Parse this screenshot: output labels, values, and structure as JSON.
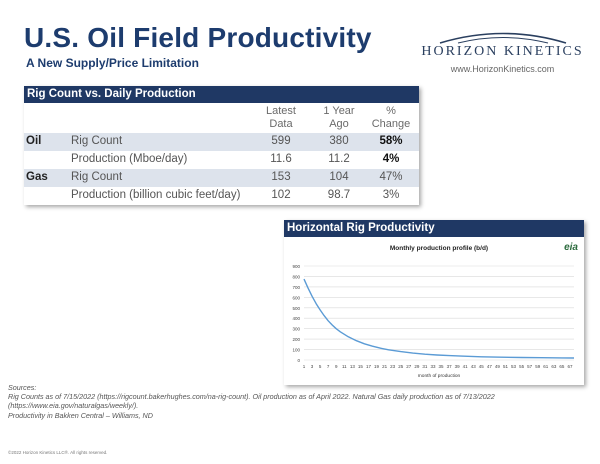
{
  "slide": {
    "title": "U.S. Oil Field Productivity",
    "subtitle": "A New Supply/Price Limitation"
  },
  "logo": {
    "name": "HORIZON KINETICS",
    "url": "www.HorizonKinetics.com"
  },
  "table": {
    "header": "Rig Count vs. Daily Production",
    "columns": [
      {
        "line1": "Latest",
        "line2": "Data"
      },
      {
        "line1": "1 Year",
        "line2": "Ago"
      },
      {
        "line1": "%",
        "line2": "Change"
      }
    ],
    "rows": [
      {
        "category": "Oil",
        "metric": "Rig Count",
        "latest": "599",
        "year_ago": "380",
        "change": "58%"
      },
      {
        "category": "",
        "metric": "Production (Mboe/day)",
        "latest": "11.6",
        "year_ago": "11.2",
        "change": "4%"
      },
      {
        "category": "Gas",
        "metric": "Rig Count",
        "latest": "153",
        "year_ago": "104",
        "change": "47%"
      },
      {
        "category": "",
        "metric": "Production (billion cubic feet/day)",
        "latest": "102",
        "year_ago": "98.7",
        "change": "3%"
      }
    ]
  },
  "chart_panel": {
    "header": "Horizontal Rig Productivity",
    "source_badge": "eia"
  },
  "chart_data": {
    "type": "line",
    "title": "Monthly production profile (b/d)",
    "xlabel": "month of production",
    "ylabel": "",
    "ylim": [
      0,
      900
    ],
    "yticks": [
      0,
      100,
      200,
      300,
      400,
      500,
      600,
      700,
      800,
      900
    ],
    "xticks": [
      1,
      3,
      5,
      7,
      9,
      11,
      13,
      15,
      17,
      19,
      21,
      23,
      25,
      27,
      29,
      31,
      33,
      35,
      37,
      39,
      41,
      43,
      45,
      47,
      49,
      51,
      53,
      55,
      57,
      59,
      61,
      63,
      65,
      67
    ],
    "xlim": [
      1,
      68
    ],
    "grid": true,
    "series": [
      {
        "x": [
          1,
          2,
          3,
          4,
          5,
          6,
          7,
          8,
          9,
          10,
          12,
          14,
          16,
          18,
          20,
          22,
          25,
          28,
          31,
          34,
          37,
          40,
          45,
          50,
          55,
          60,
          65,
          68
        ],
        "values": [
          775,
          690,
          610,
          540,
          480,
          425,
          375,
          335,
          300,
          270,
          222,
          185,
          155,
          132,
          113,
          98,
          80,
          66,
          56,
          48,
          42,
          37,
          31,
          27,
          24,
          22,
          20,
          19
        ]
      }
    ],
    "color": "#5b9bd5"
  },
  "footer": {
    "sources_label": "Sources:",
    "lines": [
      "Rig Counts as of 7/15/2022 (https://rigcount.bakerhughes.com/na-rig-count). Oil production as of April 2022.  Natural Gas daily production as of 7/13/2022",
      "(https://www.eia.gov/naturalgas/weekly/).",
      "Productivity in Bakken Central – Williams, ND"
    ],
    "copyright": "©2022 Horizon Kinetics LLC®. All rights reserved."
  }
}
